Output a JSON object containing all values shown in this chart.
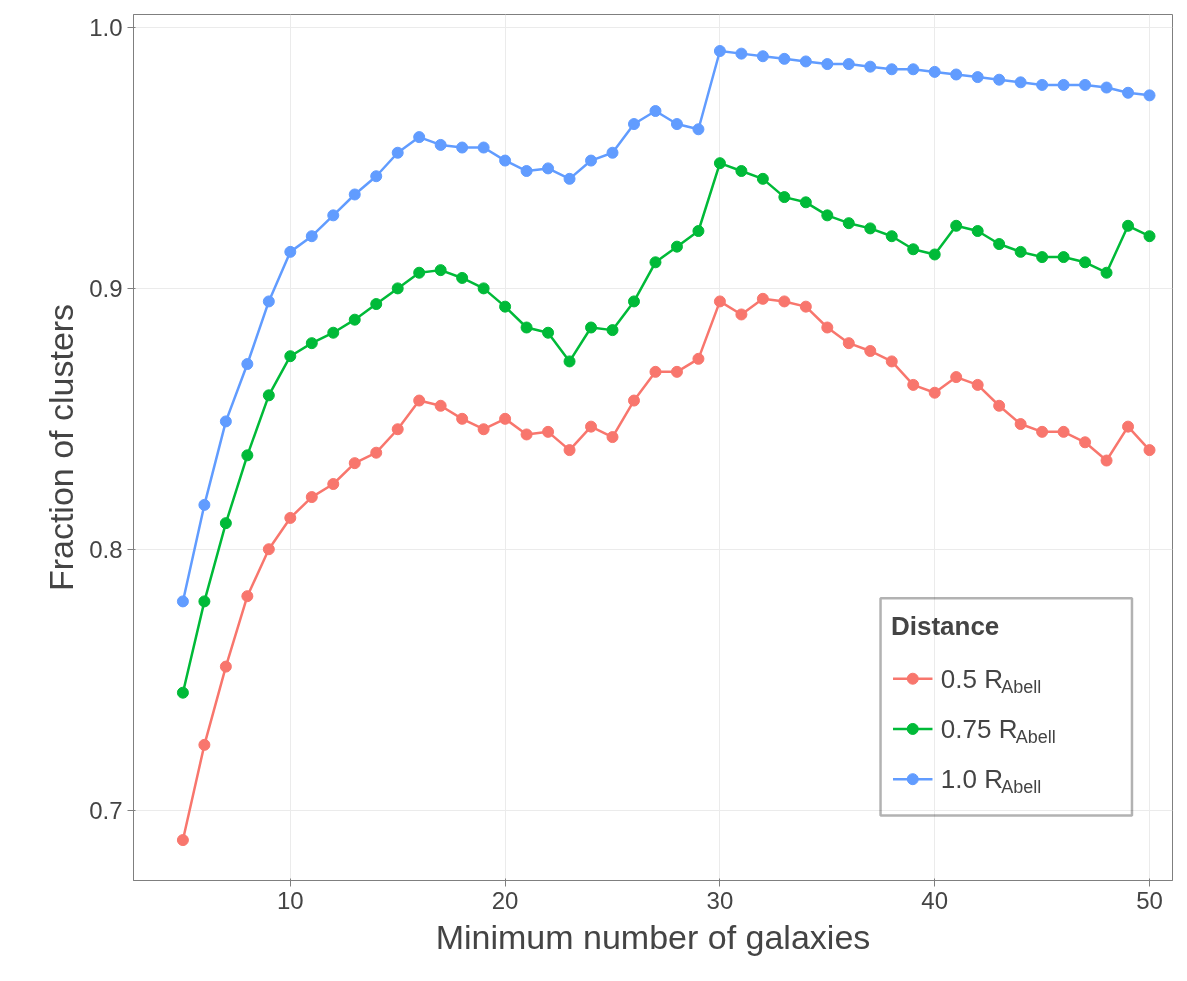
{
  "chart_data": {
    "type": "line",
    "xlabel": "Minimum number of galaxies",
    "ylabel": "Fraction of clusters",
    "legend_title": "Distance",
    "legend": "bottom right",
    "grid": true,
    "marker": "circle",
    "line_style": "solid",
    "x": [
      5,
      6,
      7,
      8,
      9,
      10,
      11,
      12,
      13,
      14,
      15,
      16,
      17,
      18,
      19,
      20,
      21,
      22,
      23,
      24,
      25,
      26,
      27,
      28,
      29,
      30,
      31,
      32,
      33,
      34,
      35,
      36,
      37,
      38,
      39,
      40,
      41,
      42,
      43,
      44,
      45,
      46,
      47,
      48,
      49,
      50
    ],
    "xlim": [
      2.7,
      51.07
    ],
    "ylim": [
      0.673,
      1.005
    ],
    "xticks": [
      10,
      20,
      30,
      40,
      50
    ],
    "yticks": [
      0.7,
      0.8,
      0.9,
      {
        "value": 1.0,
        "label": "1.0"
      }
    ],
    "series": [
      {
        "name": "0.5 R$_{Abell}$",
        "color": "#f8766d",
        "values": [
          0.6885,
          0.725,
          0.755,
          0.782,
          0.8,
          0.812,
          0.82,
          0.825,
          0.833,
          0.837,
          0.846,
          0.857,
          0.855,
          0.85,
          0.846,
          0.85,
          0.844,
          0.845,
          0.838,
          0.847,
          0.843,
          0.857,
          0.868,
          0.868,
          0.873,
          0.895,
          0.89,
          0.896,
          0.895,
          0.893,
          0.885,
          0.879,
          0.876,
          0.872,
          0.863,
          0.86,
          0.866,
          0.863,
          0.855,
          0.848,
          0.845,
          0.845,
          0.841,
          0.834,
          0.847,
          0.838
        ]
      },
      {
        "name": "0.75 R$_{Abell}$",
        "color": "#00ba38",
        "values": [
          0.745,
          0.78,
          0.81,
          0.836,
          0.859,
          0.874,
          0.879,
          0.883,
          0.888,
          0.894,
          0.9,
          0.906,
          0.907,
          0.904,
          0.9,
          0.893,
          0.885,
          0.883,
          0.872,
          0.885,
          0.884,
          0.895,
          0.91,
          0.916,
          0.922,
          0.948,
          0.945,
          0.942,
          0.935,
          0.933,
          0.928,
          0.925,
          0.923,
          0.92,
          0.915,
          0.913,
          0.924,
          0.922,
          0.917,
          0.914,
          0.912,
          0.912,
          0.91,
          0.906,
          0.924,
          0.92
        ]
      },
      {
        "name": "1.0 R$_{Abell}$",
        "color": "#619cff",
        "values": [
          0.78,
          0.817,
          0.849,
          0.871,
          0.895,
          0.914,
          0.92,
          0.928,
          0.936,
          0.943,
          0.952,
          0.958,
          0.955,
          0.954,
          0.954,
          0.949,
          0.945,
          0.946,
          0.942,
          0.949,
          0.952,
          0.963,
          0.968,
          0.963,
          0.961,
          0.991,
          0.99,
          0.989,
          0.988,
          0.987,
          0.986,
          0.986,
          0.985,
          0.984,
          0.984,
          0.983,
          0.982,
          0.981,
          0.98,
          0.979,
          0.978,
          0.978,
          0.978,
          0.977,
          0.975,
          0.974
        ]
      }
    ]
  }
}
